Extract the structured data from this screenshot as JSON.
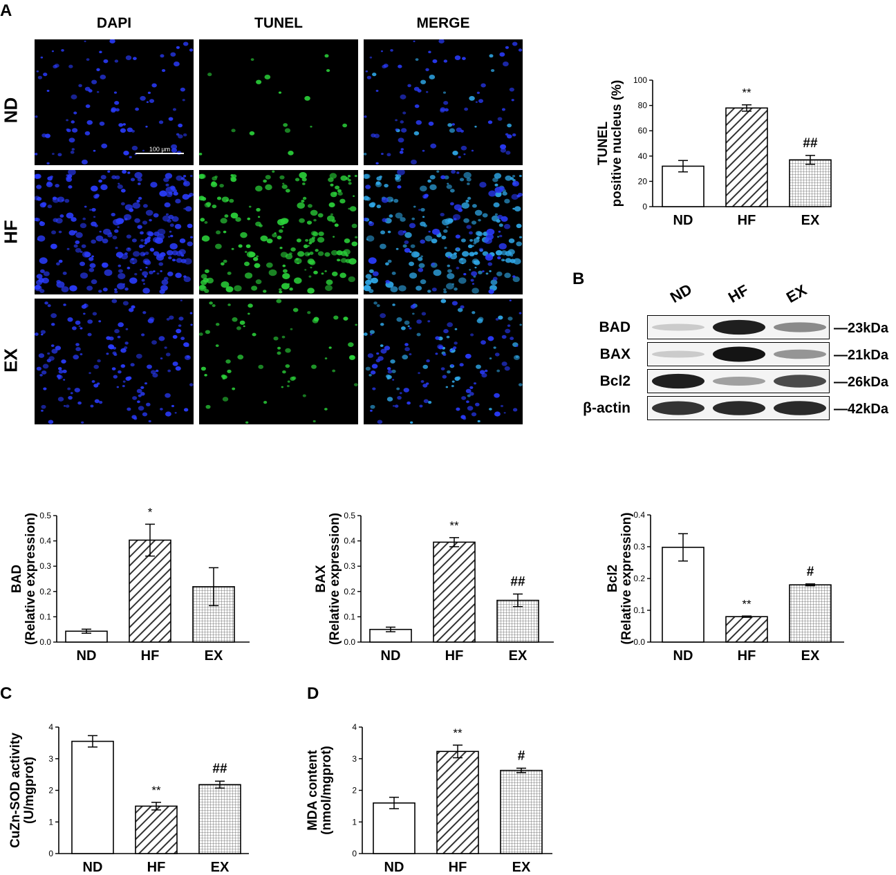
{
  "panel_labels": {
    "A": "A",
    "B": "B",
    "C": "C",
    "D": "D"
  },
  "micrograph": {
    "columns": [
      "DAPI",
      "TUNEL",
      "MERGE"
    ],
    "rows": [
      "ND",
      "HF",
      "EX"
    ],
    "scale_bar": "100 μm"
  },
  "western_blot": {
    "lanes": [
      "ND",
      "HF",
      "EX"
    ],
    "proteins": [
      {
        "name": "BAD",
        "size": "23kDa",
        "band_intensity": [
          0.15,
          0.95,
          0.45
        ]
      },
      {
        "name": "BAX",
        "size": "21kDa",
        "band_intensity": [
          0.15,
          1.0,
          0.4
        ]
      },
      {
        "name": "Bcl2",
        "size": "26kDa",
        "band_intensity": [
          0.95,
          0.35,
          0.75
        ]
      },
      {
        "name": "β-actin",
        "size": "42kDa",
        "band_intensity": [
          0.85,
          0.9,
          0.9
        ]
      }
    ]
  },
  "colors": {
    "bar_stroke": "#000000",
    "dapi": "#2a3cff",
    "tunel": "#2bd23a",
    "merge": "#2fa8e8"
  },
  "chart_data": [
    {
      "id": "tunel",
      "type": "bar",
      "categories": [
        "ND",
        "HF",
        "EX"
      ],
      "values": [
        32,
        78,
        37
      ],
      "errors": [
        4.5,
        2.5,
        3.5
      ],
      "significance": [
        "",
        "**",
        "##"
      ],
      "patterns": [
        "none",
        "diag",
        "grid"
      ],
      "ylabel_lines": [
        "TUNEL",
        "positive nucleus (%)"
      ],
      "ylim": [
        0,
        100
      ],
      "yticks": [
        "0",
        "20",
        "40",
        "60",
        "80",
        "100"
      ]
    },
    {
      "id": "bad",
      "type": "bar",
      "categories": [
        "ND",
        "HF",
        "EX"
      ],
      "values": [
        0.043,
        0.403,
        0.219
      ],
      "errors": [
        0.008,
        0.063,
        0.075
      ],
      "significance": [
        "",
        "*",
        ""
      ],
      "patterns": [
        "none",
        "diag",
        "grid"
      ],
      "ylabel_lines": [
        "BAD",
        "(Relative expression)"
      ],
      "ylim": [
        0,
        0.5
      ],
      "yticks": [
        "0.0",
        "0.1",
        "0.2",
        "0.3",
        "0.4",
        "0.5"
      ]
    },
    {
      "id": "bax",
      "type": "bar",
      "categories": [
        "ND",
        "HF",
        "EX"
      ],
      "values": [
        0.05,
        0.395,
        0.165
      ],
      "errors": [
        0.009,
        0.018,
        0.025
      ],
      "significance": [
        "",
        "**",
        "##"
      ],
      "patterns": [
        "none",
        "diag",
        "grid"
      ],
      "ylabel_lines": [
        "BAX",
        "(Relative expression)"
      ],
      "ylim": [
        0,
        0.5
      ],
      "yticks": [
        "0.0",
        "0.1",
        "0.2",
        "0.3",
        "0.4",
        "0.5"
      ]
    },
    {
      "id": "bcl2",
      "type": "bar",
      "categories": [
        "ND",
        "HF",
        "EX"
      ],
      "values": [
        0.298,
        0.08,
        0.18
      ],
      "errors": [
        0.043,
        0.002,
        0.003
      ],
      "significance": [
        "",
        "**",
        "#"
      ],
      "patterns": [
        "none",
        "diag",
        "grid"
      ],
      "ylabel_lines": [
        "Bcl2",
        "(Relative expression)"
      ],
      "ylim": [
        0,
        0.4
      ],
      "yticks": [
        "0.0",
        "0.1",
        "0.2",
        "0.3",
        "0.4"
      ]
    },
    {
      "id": "sod",
      "type": "bar",
      "categories": [
        "ND",
        "HF",
        "EX"
      ],
      "values": [
        3.55,
        1.5,
        2.18
      ],
      "errors": [
        0.18,
        0.12,
        0.11
      ],
      "significance": [
        "",
        "**",
        "##"
      ],
      "patterns": [
        "none",
        "diag",
        "grid"
      ],
      "ylabel_lines": [
        "CuZn-SOD activity",
        "(U/mgprot)"
      ],
      "ylim": [
        0,
        4
      ],
      "yticks": [
        "0",
        "1",
        "2",
        "3",
        "4"
      ]
    },
    {
      "id": "mda",
      "type": "bar",
      "categories": [
        "ND",
        "HF",
        "EX"
      ],
      "values": [
        1.6,
        3.23,
        2.63
      ],
      "errors": [
        0.18,
        0.2,
        0.07
      ],
      "significance": [
        "",
        "**",
        "#"
      ],
      "patterns": [
        "none",
        "diag",
        "grid"
      ],
      "ylabel_lines": [
        "MDA content",
        "(nmol/mgprot)"
      ],
      "ylim": [
        0,
        4
      ],
      "yticks": [
        "0",
        "1",
        "2",
        "3",
        "4"
      ]
    }
  ]
}
